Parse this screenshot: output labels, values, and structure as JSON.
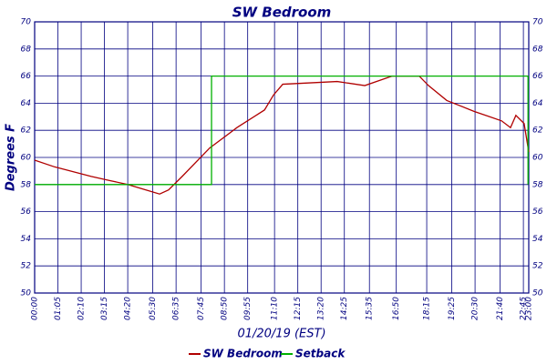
{
  "chart_data": {
    "type": "line",
    "title": "SW Bedroom",
    "x_label": "01/20/19 (EST)",
    "y_label": "Degrees F",
    "xlim": [
      0,
      1380
    ],
    "xticks": [
      {
        "value": 0,
        "label": "00:00"
      },
      {
        "value": 65,
        "label": "01:05"
      },
      {
        "value": 130,
        "label": "02:10"
      },
      {
        "value": 195,
        "label": "03:15"
      },
      {
        "value": 260,
        "label": "04:20"
      },
      {
        "value": 330,
        "label": "05:30"
      },
      {
        "value": 395,
        "label": "06:35"
      },
      {
        "value": 465,
        "label": "07:45"
      },
      {
        "value": 530,
        "label": "08:50"
      },
      {
        "value": 595,
        "label": "09:55"
      },
      {
        "value": 670,
        "label": "11:10"
      },
      {
        "value": 735,
        "label": "12:15"
      },
      {
        "value": 800,
        "label": "13:20"
      },
      {
        "value": 865,
        "label": "14:25"
      },
      {
        "value": 935,
        "label": "15:35"
      },
      {
        "value": 1010,
        "label": "16:50"
      },
      {
        "value": 1095,
        "label": "18:15"
      },
      {
        "value": 1165,
        "label": "19:25"
      },
      {
        "value": 1230,
        "label": "20:30"
      },
      {
        "value": 1300,
        "label": "21:40"
      },
      {
        "value": 1365,
        "label": "22:45"
      },
      {
        "value": 1380,
        "label": "23:00"
      }
    ],
    "ylim": [
      50,
      70
    ],
    "yticks": [
      50,
      52,
      54,
      56,
      58,
      60,
      62,
      64,
      66,
      68,
      70
    ],
    "grid": true,
    "legend": "bottom",
    "series": [
      {
        "name": "SW Bedroom",
        "color": "#b00000",
        "x": [
          0,
          56,
          158,
          209,
          260,
          311,
          349,
          374,
          412,
          489,
          565,
          642,
          667,
          693,
          769,
          845,
          922,
          998,
          1074,
          1100,
          1151,
          1227,
          1304,
          1329,
          1344,
          1367,
          1380
        ],
        "values": [
          59.8,
          59.3,
          58.6,
          58.3,
          58.0,
          57.6,
          57.3,
          57.6,
          58.6,
          60.7,
          62.2,
          63.5,
          64.6,
          65.4,
          65.5,
          65.6,
          65.3,
          66.0,
          66.0,
          65.3,
          64.2,
          63.4,
          62.7,
          62.2,
          63.1,
          62.5,
          60.4
        ]
      },
      {
        "name": "Setback",
        "color": "#00b000",
        "x": [
          0,
          494,
          494,
          1378,
          1378
        ],
        "values": [
          58,
          58,
          66,
          66,
          58
        ]
      }
    ]
  }
}
